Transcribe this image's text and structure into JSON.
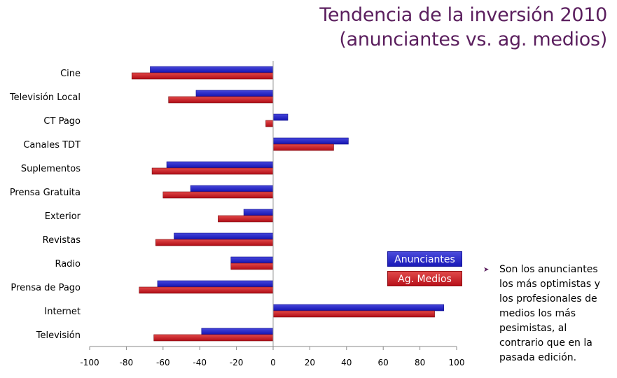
{
  "title": {
    "line1": "Tendencia de la inversión 2010",
    "line2": "(anunciantes vs. ag. medios)"
  },
  "legend": {
    "anunciantes": "Anunciantes",
    "agmedios": "Ag. Medios"
  },
  "note": {
    "bullet_icon": "arrow-bullet-icon",
    "text": "Son los anunciantes los más optimistas y los profesionales de medios los más pesimistas, al contrario que en la pasada edición."
  },
  "colors": {
    "title": "#5b1f5e",
    "anunciantes": "#1f1fc4",
    "agmedios": "#c8101c"
  },
  "chart_data": {
    "type": "bar",
    "orientation": "horizontal",
    "categories": [
      "Cine",
      "Televisión Local",
      "CT Pago",
      "Canales TDT",
      "Suplementos",
      "Prensa Gratuita",
      "Exterior",
      "Revistas",
      "Radio",
      "Prensa de Pago",
      "Internet",
      "Televisión"
    ],
    "series": [
      {
        "name": "Anunciantes",
        "values": [
          -67,
          -42,
          8,
          41,
          -58,
          -45,
          -16,
          -54,
          -23,
          -63,
          93,
          -39
        ]
      },
      {
        "name": "Ag. Medios",
        "values": [
          -77,
          -57,
          -4,
          33,
          -66,
          -60,
          -30,
          -64,
          -23,
          -73,
          88,
          -65
        ]
      }
    ],
    "xlim": [
      -100,
      100
    ],
    "xticks": [
      -100,
      -80,
      -60,
      -40,
      -20,
      0,
      20,
      40,
      60,
      80,
      100
    ],
    "grid": false,
    "legend_position": "bottom-right"
  }
}
